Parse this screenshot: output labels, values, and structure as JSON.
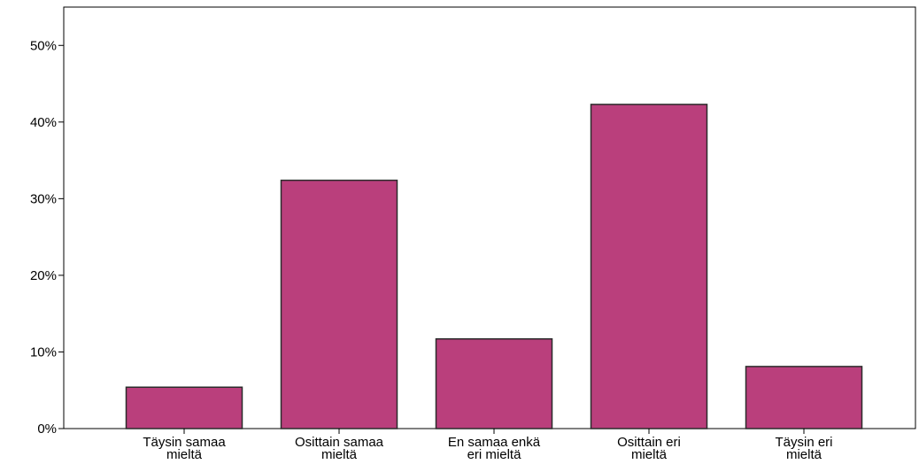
{
  "chart_data": {
    "type": "bar",
    "categories": [
      [
        "Täysin samaa",
        "mieltä"
      ],
      [
        "Osittain samaa",
        "mieltä"
      ],
      [
        "En samaa enkä",
        "eri mieltä"
      ],
      [
        "Osittain eri",
        "mieltä"
      ],
      [
        "Täysin eri",
        "mieltä"
      ]
    ],
    "values": [
      5.4,
      32.4,
      11.7,
      42.3,
      8.1
    ],
    "ylim": [
      0,
      55
    ],
    "yticks": [
      0,
      10,
      20,
      30,
      40,
      50
    ],
    "ytick_labels": [
      "0%",
      "10%",
      "20%",
      "30%",
      "40%",
      "50%"
    ],
    "title": "",
    "xlabel": "",
    "ylabel": "",
    "grid": false,
    "colors": {
      "bar_fill": "#BA3F7C",
      "bar_stroke": "#2B2B2B",
      "axis": "#000000",
      "plot_border": "#000000"
    }
  }
}
